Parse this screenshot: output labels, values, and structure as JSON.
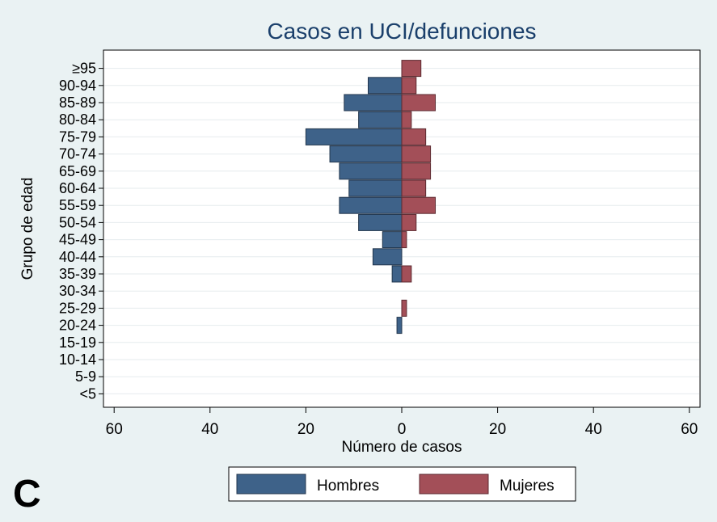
{
  "panel_label": "C",
  "chart_data": {
    "type": "bar",
    "orientation": "horizontal",
    "title": "Casos en UCI/defunciones",
    "xlabel": "Número de casos",
    "ylabel": "Grupo de edad",
    "categories": [
      "<5",
      "5-9",
      "10-14",
      "15-19",
      "20-24",
      "25-29",
      "30-34",
      "35-39",
      "40-44",
      "45-49",
      "50-54",
      "55-59",
      "60-64",
      "65-69",
      "70-74",
      "75-79",
      "80-84",
      "85-89",
      "90-94",
      "≥95"
    ],
    "series": [
      {
        "name": "Hombres",
        "color": "#3e6289",
        "values": [
          0,
          0,
          0,
          0,
          1,
          0,
          0,
          2,
          6,
          4,
          9,
          13,
          11,
          13,
          15,
          20,
          9,
          12,
          7,
          0
        ]
      },
      {
        "name": "Mujeres",
        "color": "#a34f58",
        "values": [
          0,
          0,
          0,
          0,
          0,
          1,
          0,
          2,
          0,
          1,
          3,
          7,
          5,
          6,
          6,
          5,
          2,
          7,
          3,
          4
        ]
      }
    ],
    "xlim": [
      -60,
      60
    ],
    "xtick_values": [
      -60,
      -40,
      -20,
      0,
      20,
      40,
      60
    ],
    "xtick_labels": [
      "60",
      "40",
      "20",
      "0",
      "20",
      "40",
      "60"
    ],
    "grid": true,
    "legend_position": "bottom"
  }
}
